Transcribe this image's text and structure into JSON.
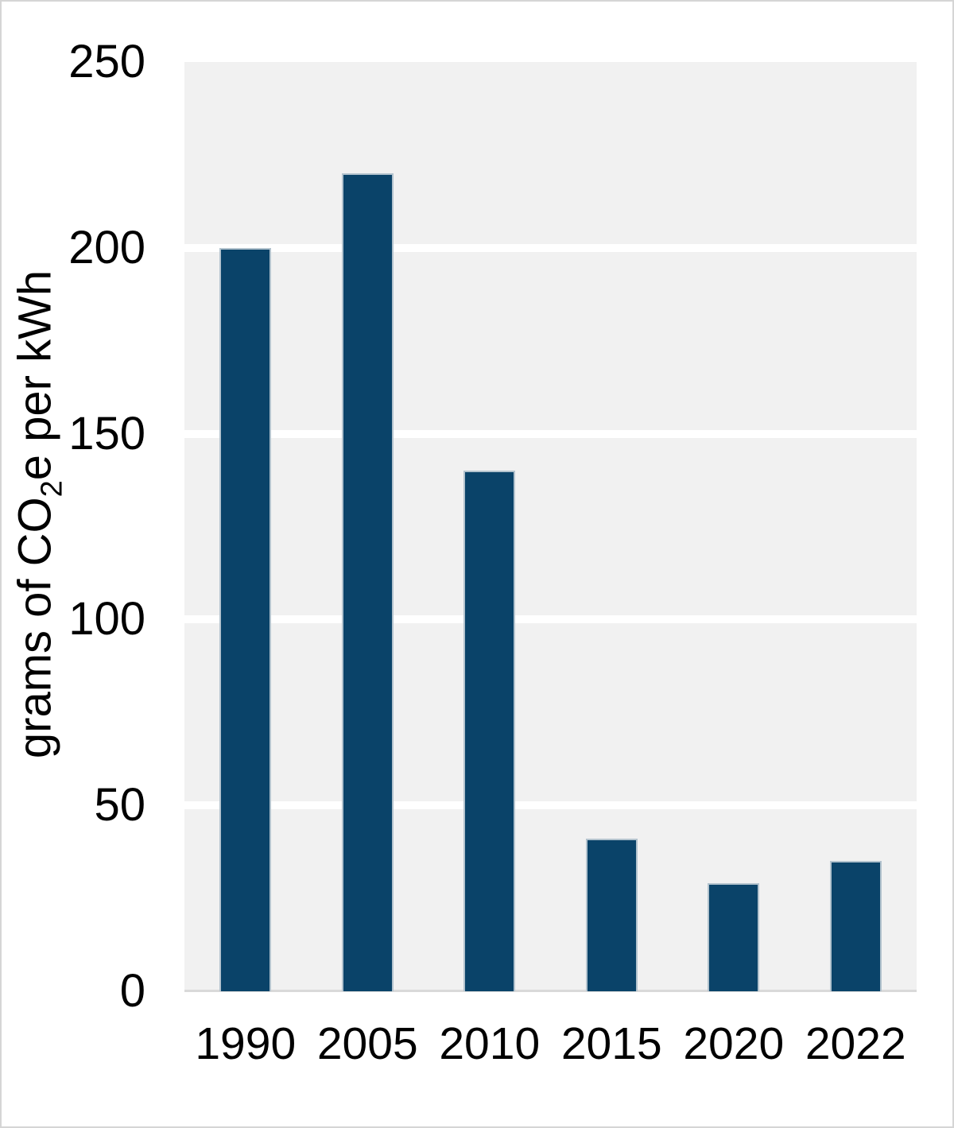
{
  "chart_data": {
    "type": "bar",
    "categories": [
      "1990",
      "2005",
      "2010",
      "2015",
      "2020",
      "2022"
    ],
    "values": [
      200,
      220,
      140,
      41,
      29,
      35
    ],
    "title": "",
    "xlabel": "",
    "ylabel": "grams of CO2e per kWh",
    "ylabel_parts": {
      "prefix": "grams of CO",
      "sub": "2",
      "suffix": "e per kWh"
    },
    "yticks": [
      0,
      50,
      100,
      150,
      200,
      250
    ],
    "ylim": [
      0,
      250
    ],
    "grid": "horizontal",
    "legend": "none",
    "colors": {
      "bar_fill": "#0A4369",
      "bar_border": "#B3C3CE",
      "panel_bg": "#F1F1F1",
      "gridline": "#FFFFFF",
      "baseline": "#D9D9D9",
      "text": "#000000",
      "page_bg": "#FFFFFF",
      "frame_border": "#D5D5D5"
    }
  }
}
